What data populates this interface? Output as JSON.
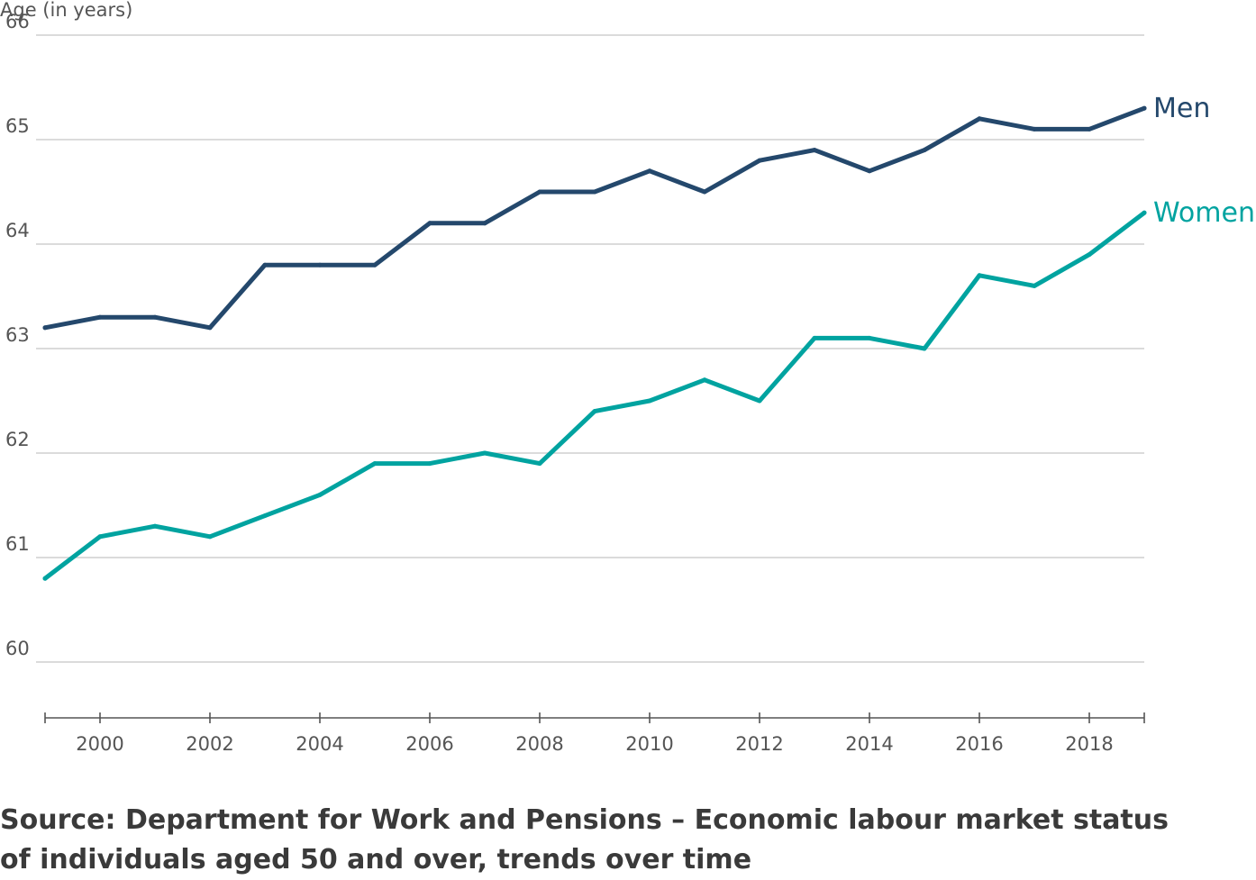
{
  "chart_data": {
    "type": "line",
    "title": "",
    "xlabel": "",
    "ylabel": "Age (in years)",
    "xlim": [
      1999,
      2019
    ],
    "ylim": [
      59.5,
      66
    ],
    "x_ticks": [
      2000,
      2002,
      2004,
      2006,
      2008,
      2010,
      2012,
      2014,
      2016,
      2018
    ],
    "y_ticks": [
      60,
      61,
      62,
      63,
      64,
      65,
      66
    ],
    "grid": true,
    "legend": "end-of-line labels",
    "x": [
      1999,
      2000,
      2001,
      2002,
      2003,
      2004,
      2005,
      2006,
      2007,
      2008,
      2009,
      2010,
      2011,
      2012,
      2013,
      2014,
      2015,
      2016,
      2017,
      2018,
      2019
    ],
    "series": [
      {
        "name": "Men",
        "color": "#24486c",
        "values": [
          63.2,
          63.3,
          63.3,
          63.2,
          63.8,
          63.8,
          63.8,
          64.2,
          64.2,
          64.5,
          64.5,
          64.7,
          64.5,
          64.8,
          64.9,
          64.7,
          64.9,
          65.2,
          65.1,
          65.1,
          65.3
        ]
      },
      {
        "name": "Women",
        "color": "#00a3a0",
        "values": [
          60.8,
          61.2,
          61.3,
          61.2,
          61.4,
          61.6,
          61.9,
          61.9,
          62.0,
          61.9,
          62.4,
          62.5,
          62.7,
          62.5,
          63.1,
          63.1,
          63.0,
          63.7,
          63.6,
          63.9,
          64.3
        ]
      }
    ]
  },
  "source_text": "Source: Department for Work and Pensions – Economic labour market status of individuals aged 50 and over, trends over time"
}
